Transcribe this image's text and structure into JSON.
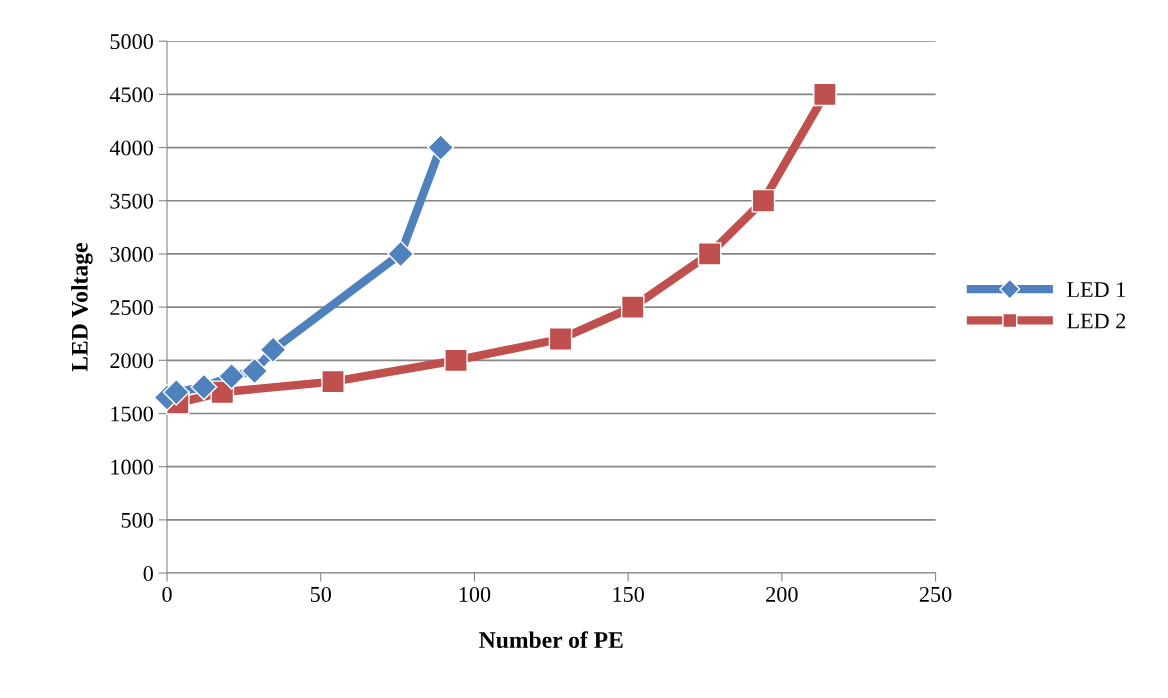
{
  "chart_data": {
    "type": "line",
    "xlabel": "Number of PE",
    "ylabel": "LED Voltage",
    "xlim": [
      0,
      250
    ],
    "xticks": [
      0,
      50,
      100,
      150,
      200,
      250
    ],
    "ylim": [
      0,
      5000
    ],
    "yticks": [
      0,
      500,
      1000,
      1500,
      2000,
      2500,
      3000,
      3500,
      4000,
      4500,
      5000
    ],
    "grid": "y",
    "legend": "right",
    "line_style": "solid",
    "series": [
      {
        "name": "LED 1",
        "color": "#4f81bd",
        "marker": "diamond",
        "x": [
          0,
          3,
          12,
          21,
          28.5,
          34.5,
          76,
          89
        ],
        "values": [
          1650,
          1700,
          1750,
          1850,
          1900,
          2100,
          3000,
          4000
        ]
      },
      {
        "name": "LED 2",
        "color": "#c0504d",
        "marker": "square",
        "x": [
          3.5,
          18,
          54,
          94,
          128,
          151.5,
          176.5,
          194,
          214
        ],
        "values": [
          1600,
          1700,
          1800,
          2000,
          2200,
          2500,
          3000,
          3500,
          4500
        ]
      }
    ]
  }
}
